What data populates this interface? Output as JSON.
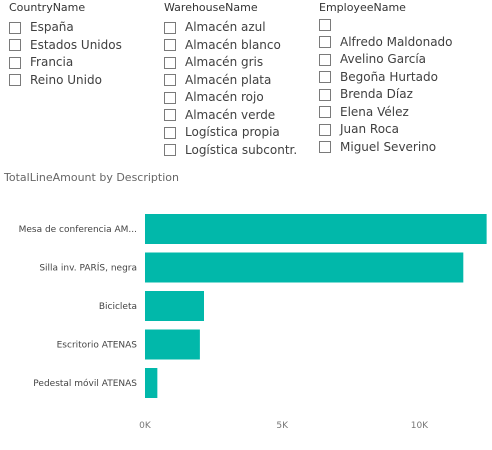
{
  "slicers": {
    "country": {
      "title": "CountryName",
      "items": [
        "España",
        "Estados Unidos",
        "Francia",
        "Reino Unido"
      ]
    },
    "warehouse": {
      "title": "WarehouseName",
      "items": [
        "Almacén azul",
        "Almacén blanco",
        "Almacén gris",
        "Almacén plata",
        "Almacén rojo",
        "Almacén verde",
        "Logística propia",
        "Logística subcontr."
      ]
    },
    "employee": {
      "title": "EmployeeName",
      "items": [
        "",
        "Alfredo Maldonado",
        "Avelino García",
        "Begoña Hurtado",
        "Brenda Díaz",
        "Elena Vélez",
        "Juan Roca",
        "Miguel Severino"
      ]
    }
  },
  "chart_title": "TotalLineAmount by Description",
  "chart_data": {
    "type": "bar",
    "orientation": "horizontal",
    "title": "TotalLineAmount by Description",
    "categories": [
      "Mesa de conferencia AM...",
      "Silla inv. PARÍS, negra",
      "Bicicleta",
      "Escritorio ATENAS",
      "Pedestal móvil ATENAS"
    ],
    "values": [
      12450,
      11600,
      2150,
      2000,
      450
    ],
    "xlim": [
      0,
      12500
    ],
    "ticks": [
      0,
      5000,
      10000
    ],
    "tick_labels": [
      "0K",
      "5K",
      "10K"
    ],
    "bar_color": "#01b8aa",
    "grid": false
  }
}
